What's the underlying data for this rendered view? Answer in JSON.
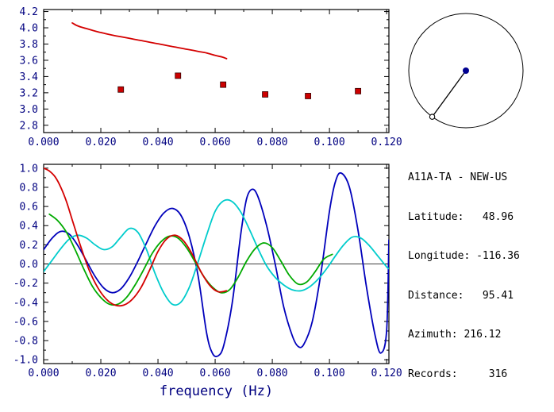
{
  "window": {
    "background": "#ffffff"
  },
  "colors": {
    "frame": "#000000",
    "text": "#000080",
    "red": "#d40000",
    "blue": "#0000bb",
    "cyan": "#00cccc",
    "green": "#00aa00",
    "marker_fill": "#cc0000",
    "marker_edge": "#330000",
    "dot": "#000090"
  },
  "info": {
    "title": "A11A-TA - NEW-US",
    "lines": [
      "Latitude:   48.96",
      "Longitude: -116.36",
      "Distance:   95.41",
      "Azimuth: 216.12",
      "Records:     316"
    ]
  },
  "azimuth_panel": {
    "azimuth_deg": 216.12
  },
  "chart_data": [
    {
      "id": "dispersion",
      "type": "line",
      "title": "",
      "xlabel": "",
      "ylabel": "",
      "xlim": [
        0,
        0.1208
      ],
      "ylim": [
        2.71,
        4.225
      ],
      "xticks": [
        0.0,
        0.02,
        0.04,
        0.06,
        0.08,
        0.1,
        0.12
      ],
      "xtick_labels": [
        "0.000",
        "0.020",
        "0.040",
        "0.060",
        "0.080",
        "0.100",
        "0.120"
      ],
      "xminor": [
        0.01,
        0.03,
        0.05,
        0.07,
        0.09,
        0.11
      ],
      "yticks": [
        2.8,
        3.0,
        3.2,
        3.4,
        3.6,
        3.8,
        4.0,
        4.2
      ],
      "ytick_labels": [
        "2.8",
        "3.0",
        "3.2",
        "3.4",
        "3.6",
        "3.8",
        "4.0",
        "4.2"
      ],
      "yminor": [
        2.9,
        3.1,
        3.3,
        3.5,
        3.7,
        3.9,
        4.1
      ],
      "grid": false,
      "series": [
        {
          "name": "dispersion-curve",
          "color_key": "red",
          "mode": "line",
          "points": [
            [
              0.01,
              4.06
            ],
            [
              0.0115,
              4.03
            ],
            [
              0.013,
              4.01
            ],
            [
              0.015,
              3.99
            ],
            [
              0.017,
              3.97
            ],
            [
              0.019,
              3.95
            ],
            [
              0.0215,
              3.93
            ],
            [
              0.024,
              3.91
            ],
            [
              0.027,
              3.89
            ],
            [
              0.03,
              3.87
            ],
            [
              0.033,
              3.85
            ],
            [
              0.036,
              3.83
            ],
            [
              0.039,
              3.81
            ],
            [
              0.042,
              3.79
            ],
            [
              0.045,
              3.77
            ],
            [
              0.048,
              3.75
            ],
            [
              0.051,
              3.73
            ],
            [
              0.054,
              3.71
            ],
            [
              0.057,
              3.69
            ],
            [
              0.06,
              3.66
            ],
            [
              0.0625,
              3.64
            ],
            [
              0.064,
              3.62
            ]
          ]
        },
        {
          "name": "group-velocity-picks",
          "color_key": "marker_fill",
          "mode": "scatter",
          "points": [
            [
              0.027,
              3.24
            ],
            [
              0.047,
              3.41
            ],
            [
              0.0628,
              3.3
            ],
            [
              0.0775,
              3.18
            ],
            [
              0.0925,
              3.16
            ],
            [
              0.11,
              3.22
            ]
          ]
        }
      ]
    },
    {
      "id": "cross-spectra",
      "type": "line",
      "title": "",
      "xlabel": "frequency (Hz)",
      "ylabel": "",
      "xlim": [
        0,
        0.1208
      ],
      "ylim": [
        -1.04,
        1.04
      ],
      "xticks": [
        0.0,
        0.02,
        0.04,
        0.06,
        0.08,
        0.1,
        0.12
      ],
      "xtick_labels": [
        "0.000",
        "0.020",
        "0.040",
        "0.060",
        "0.080",
        "0.100",
        "0.120"
      ],
      "xminor": [
        0.01,
        0.03,
        0.05,
        0.07,
        0.09,
        0.11
      ],
      "yticks": [
        1.0,
        0.8,
        0.6,
        0.4,
        0.2,
        0.0,
        -0.2,
        -0.4,
        -0.6,
        -0.8,
        -1.0
      ],
      "ytick_labels": [
        "1.0",
        "0.8",
        "0.6",
        "0.4",
        "0.2",
        "0.0",
        "-0.2",
        "-0.4",
        "-0.6",
        "-0.8",
        "-1.0"
      ],
      "yminor": [
        -0.9,
        -0.7,
        -0.5,
        -0.3,
        -0.1,
        0.1,
        0.3,
        0.5,
        0.7,
        0.9
      ],
      "zero_line": true,
      "grid": false,
      "series": [
        {
          "name": "spectrum-trace-blue",
          "color_key": "blue",
          "mode": "line",
          "points": [
            [
              0.0,
              0.15
            ],
            [
              0.003,
              0.27
            ],
            [
              0.006,
              0.34
            ],
            [
              0.009,
              0.31
            ],
            [
              0.012,
              0.19
            ],
            [
              0.015,
              0.03
            ],
            [
              0.018,
              -0.13
            ],
            [
              0.021,
              -0.25
            ],
            [
              0.024,
              -0.3
            ],
            [
              0.027,
              -0.26
            ],
            [
              0.03,
              -0.14
            ],
            [
              0.033,
              0.03
            ],
            [
              0.036,
              0.22
            ],
            [
              0.039,
              0.4
            ],
            [
              0.042,
              0.53
            ],
            [
              0.045,
              0.58
            ],
            [
              0.048,
              0.51
            ],
            [
              0.051,
              0.28
            ],
            [
              0.054,
              -0.12
            ],
            [
              0.057,
              -0.72
            ],
            [
              0.059,
              -0.93
            ],
            [
              0.061,
              -0.96
            ],
            [
              0.063,
              -0.85
            ],
            [
              0.066,
              -0.4
            ],
            [
              0.069,
              0.32
            ],
            [
              0.071,
              0.68
            ],
            [
              0.073,
              0.78
            ],
            [
              0.075,
              0.7
            ],
            [
              0.078,
              0.4
            ],
            [
              0.081,
              0.0
            ],
            [
              0.084,
              -0.45
            ],
            [
              0.087,
              -0.75
            ],
            [
              0.089,
              -0.86
            ],
            [
              0.091,
              -0.84
            ],
            [
              0.094,
              -0.6
            ],
            [
              0.097,
              -0.1
            ],
            [
              0.1,
              0.55
            ],
            [
              0.102,
              0.85
            ],
            [
              0.104,
              0.95
            ],
            [
              0.107,
              0.8
            ],
            [
              0.11,
              0.35
            ],
            [
              0.113,
              -0.25
            ],
            [
              0.116,
              -0.75
            ],
            [
              0.118,
              -0.93
            ],
            [
              0.12,
              -0.7
            ],
            [
              0.1208,
              0.25
            ]
          ]
        },
        {
          "name": "spectrum-trace-cyan",
          "color_key": "cyan",
          "mode": "line",
          "points": [
            [
              0.0,
              -0.08
            ],
            [
              0.003,
              0.04
            ],
            [
              0.006,
              0.16
            ],
            [
              0.009,
              0.26
            ],
            [
              0.012,
              0.3
            ],
            [
              0.015,
              0.27
            ],
            [
              0.018,
              0.2
            ],
            [
              0.021,
              0.15
            ],
            [
              0.024,
              0.18
            ],
            [
              0.027,
              0.28
            ],
            [
              0.03,
              0.37
            ],
            [
              0.033,
              0.33
            ],
            [
              0.036,
              0.15
            ],
            [
              0.039,
              -0.1
            ],
            [
              0.042,
              -0.3
            ],
            [
              0.045,
              -0.42
            ],
            [
              0.048,
              -0.4
            ],
            [
              0.051,
              -0.24
            ],
            [
              0.054,
              0.02
            ],
            [
              0.057,
              0.3
            ],
            [
              0.06,
              0.55
            ],
            [
              0.063,
              0.66
            ],
            [
              0.066,
              0.65
            ],
            [
              0.069,
              0.54
            ],
            [
              0.072,
              0.36
            ],
            [
              0.075,
              0.16
            ],
            [
              0.078,
              -0.02
            ],
            [
              0.081,
              -0.14
            ],
            [
              0.084,
              -0.22
            ],
            [
              0.087,
              -0.27
            ],
            [
              0.09,
              -0.28
            ],
            [
              0.093,
              -0.24
            ],
            [
              0.096,
              -0.16
            ],
            [
              0.099,
              -0.05
            ],
            [
              0.102,
              0.08
            ],
            [
              0.105,
              0.2
            ],
            [
              0.108,
              0.28
            ],
            [
              0.111,
              0.27
            ],
            [
              0.114,
              0.19
            ],
            [
              0.117,
              0.08
            ],
            [
              0.12,
              -0.03
            ],
            [
              0.1208,
              -0.05
            ]
          ]
        },
        {
          "name": "spectrum-trace-green",
          "color_key": "green",
          "mode": "line",
          "points": [
            [
              0.002,
              0.52
            ],
            [
              0.005,
              0.45
            ],
            [
              0.008,
              0.33
            ],
            [
              0.011,
              0.15
            ],
            [
              0.014,
              -0.05
            ],
            [
              0.017,
              -0.23
            ],
            [
              0.02,
              -0.35
            ],
            [
              0.023,
              -0.42
            ],
            [
              0.026,
              -0.42
            ],
            [
              0.029,
              -0.35
            ],
            [
              0.032,
              -0.22
            ],
            [
              0.035,
              -0.06
            ],
            [
              0.038,
              0.11
            ],
            [
              0.041,
              0.23
            ],
            [
              0.044,
              0.29
            ],
            [
              0.047,
              0.27
            ],
            [
              0.05,
              0.17
            ],
            [
              0.053,
              0.02
            ],
            [
              0.056,
              -0.13
            ],
            [
              0.059,
              -0.24
            ],
            [
              0.062,
              -0.3
            ],
            [
              0.065,
              -0.27
            ],
            [
              0.068,
              -0.14
            ],
            [
              0.071,
              0.03
            ],
            [
              0.074,
              0.16
            ],
            [
              0.077,
              0.22
            ],
            [
              0.08,
              0.17
            ],
            [
              0.083,
              0.03
            ],
            [
              0.086,
              -0.12
            ],
            [
              0.089,
              -0.21
            ],
            [
              0.092,
              -0.19
            ],
            [
              0.095,
              -0.08
            ],
            [
              0.098,
              0.05
            ],
            [
              0.101,
              0.1
            ]
          ]
        },
        {
          "name": "spectrum-trace-red",
          "color_key": "red",
          "mode": "line",
          "points": [
            [
              0.0,
              1.0
            ],
            [
              0.002,
              0.97
            ],
            [
              0.004,
              0.91
            ],
            [
              0.006,
              0.8
            ],
            [
              0.008,
              0.65
            ],
            [
              0.01,
              0.46
            ],
            [
              0.013,
              0.18
            ],
            [
              0.016,
              -0.07
            ],
            [
              0.019,
              -0.25
            ],
            [
              0.022,
              -0.37
            ],
            [
              0.025,
              -0.43
            ],
            [
              0.028,
              -0.43
            ],
            [
              0.031,
              -0.37
            ],
            [
              0.034,
              -0.25
            ],
            [
              0.037,
              -0.07
            ],
            [
              0.04,
              0.13
            ],
            [
              0.043,
              0.26
            ],
            [
              0.046,
              0.3
            ],
            [
              0.049,
              0.24
            ],
            [
              0.052,
              0.1
            ],
            [
              0.055,
              -0.08
            ],
            [
              0.058,
              -0.22
            ],
            [
              0.061,
              -0.29
            ],
            [
              0.064,
              -0.28
            ]
          ]
        }
      ]
    }
  ]
}
